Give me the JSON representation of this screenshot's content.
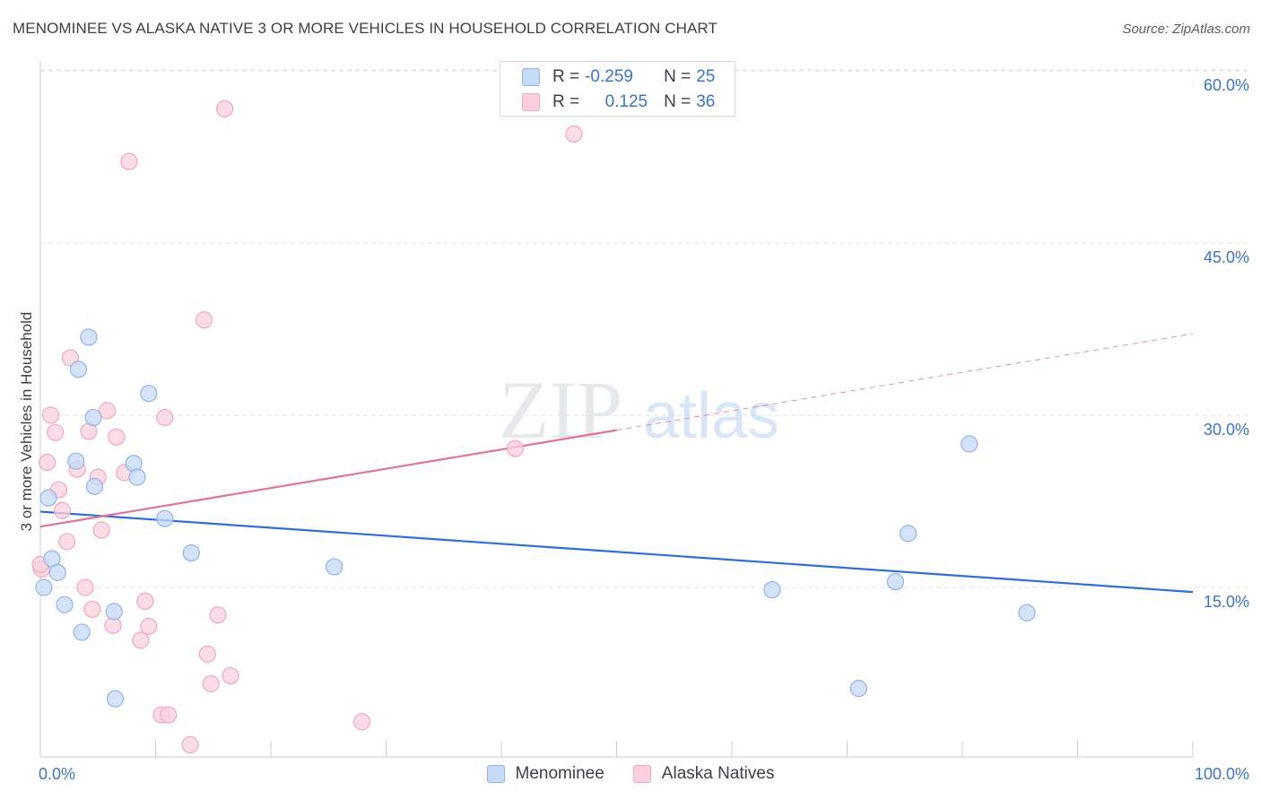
{
  "header": {
    "title": "MENOMINEE VS ALASKA NATIVE 3 OR MORE VEHICLES IN HOUSEHOLD CORRELATION CHART",
    "source": "Source: ZipAtlas.com"
  },
  "watermark": {
    "zip": "ZIP",
    "atlas": "atlas"
  },
  "legend": {
    "rows": [
      {
        "r_label": "R =",
        "r_value": "-0.259",
        "n_label": "N =",
        "n_value": "25"
      },
      {
        "r_label": "R =",
        "r_value": "0.125",
        "n_label": "N =",
        "n_value": "36"
      }
    ]
  },
  "colors": {
    "menominee_fill": "#c6d9f7",
    "menominee_stroke": "#8fb3e8",
    "menominee_line": "#2f6fce",
    "alaska_fill": "#fbd0dc",
    "alaska_stroke": "#f0a6bd",
    "alaska_line": "#e2709a",
    "axis_label": "#3b73c9"
  },
  "chart_data": {
    "type": "scatter",
    "title": "MENOMINEE VS ALASKA NATIVE 3 OR MORE VEHICLES IN HOUSEHOLD CORRELATION CHART",
    "xlabel": "",
    "ylabel": "3 or more Vehicles in Household",
    "xlim": [
      0,
      100
    ],
    "ylim": [
      0,
      63
    ],
    "x_tick_labels": [
      {
        "value": 0,
        "label": "0.0%"
      },
      {
        "value": 100,
        "label": "100.0%"
      }
    ],
    "y_tick_labels": [
      {
        "value": 15,
        "label": "15.0%"
      },
      {
        "value": 30,
        "label": "30.0%"
      },
      {
        "value": 45,
        "label": "45.0%"
      },
      {
        "value": 60,
        "label": "60.0%"
      }
    ],
    "grid": true,
    "series": [
      {
        "name": "Menominee",
        "points": [
          [
            0.3,
            15.0
          ],
          [
            0.7,
            22.8
          ],
          [
            1.0,
            17.5
          ],
          [
            1.5,
            16.3
          ],
          [
            2.1,
            13.5
          ],
          [
            3.1,
            26.0
          ],
          [
            3.3,
            34.0
          ],
          [
            3.6,
            11.1
          ],
          [
            4.2,
            36.8
          ],
          [
            4.6,
            29.8
          ],
          [
            4.7,
            23.8
          ],
          [
            6.4,
            12.9
          ],
          [
            6.5,
            5.3
          ],
          [
            8.1,
            25.8
          ],
          [
            8.4,
            24.6
          ],
          [
            9.4,
            31.9
          ],
          [
            10.8,
            21.0
          ],
          [
            13.1,
            18.0
          ],
          [
            25.5,
            16.8
          ],
          [
            63.5,
            14.8
          ],
          [
            71.0,
            6.2
          ],
          [
            74.2,
            15.5
          ],
          [
            75.3,
            19.7
          ],
          [
            80.6,
            27.5
          ],
          [
            85.6,
            12.8
          ]
        ],
        "trend": {
          "x_start": 0,
          "y_start": 21.6,
          "x_end": 100,
          "y_end": 14.6
        }
      },
      {
        "name": "Alaska Natives",
        "points": [
          [
            0.1,
            16.6
          ],
          [
            0.6,
            25.9
          ],
          [
            0.9,
            30.0
          ],
          [
            1.3,
            28.5
          ],
          [
            1.6,
            23.5
          ],
          [
            1.9,
            21.7
          ],
          [
            2.3,
            19.0
          ],
          [
            2.6,
            35.0
          ],
          [
            3.2,
            25.3
          ],
          [
            3.9,
            15.0
          ],
          [
            4.2,
            28.6
          ],
          [
            4.5,
            13.1
          ],
          [
            5.0,
            24.6
          ],
          [
            5.3,
            20.0
          ],
          [
            5.8,
            30.4
          ],
          [
            6.3,
            11.7
          ],
          [
            6.6,
            28.1
          ],
          [
            7.3,
            25.0
          ],
          [
            7.7,
            52.1
          ],
          [
            8.7,
            10.4
          ],
          [
            9.1,
            13.8
          ],
          [
            9.4,
            11.6
          ],
          [
            10.5,
            3.9
          ],
          [
            10.8,
            29.8
          ],
          [
            11.1,
            3.9
          ],
          [
            13.0,
            1.3
          ],
          [
            14.2,
            38.3
          ],
          [
            14.5,
            9.2
          ],
          [
            14.8,
            6.6
          ],
          [
            15.4,
            12.6
          ],
          [
            16.0,
            56.7
          ],
          [
            16.5,
            7.3
          ],
          [
            27.9,
            3.3
          ],
          [
            41.2,
            27.1
          ],
          [
            46.3,
            54.5
          ],
          [
            0.0,
            17.0
          ]
        ],
        "trend": {
          "x_start": 0,
          "y_start": 20.3,
          "x_end": 50,
          "y_end": 28.7,
          "dashed_to_x": 100,
          "dashed_to_y": 37.1
        }
      }
    ]
  }
}
